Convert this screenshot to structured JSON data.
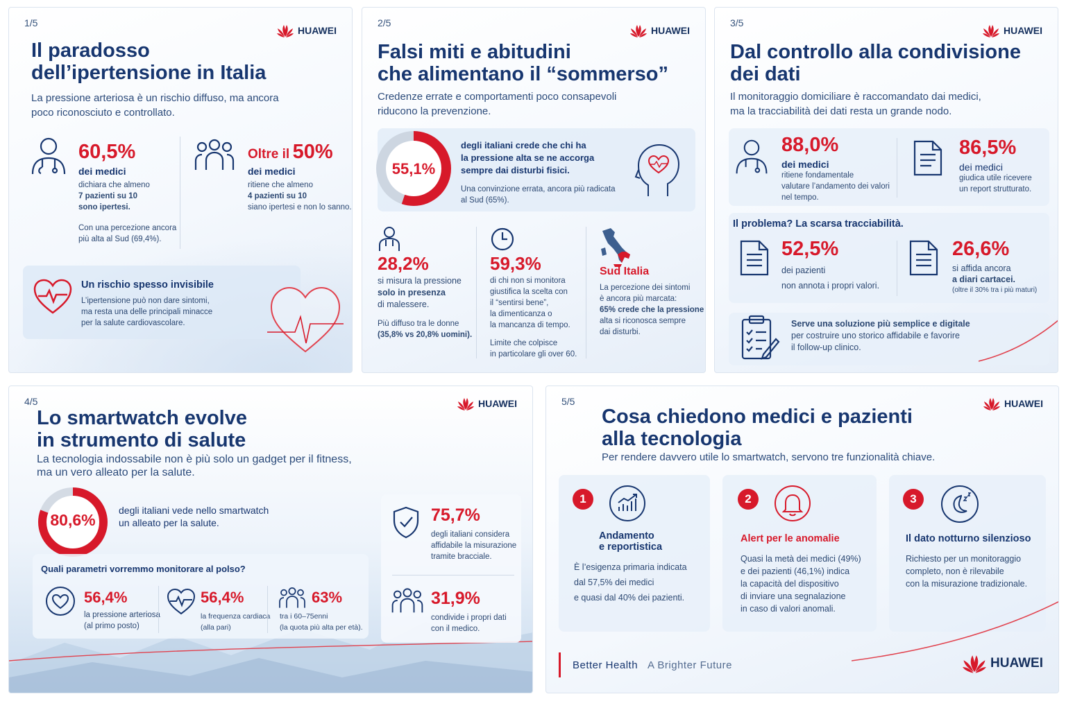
{
  "brand": "HUAWEI",
  "p1": {
    "num": "1/5",
    "title1": "Il paradosso",
    "title2": "dell’ipertensione in Italia",
    "sub1": "La pressione arteriosa è un rischio diffuso, ma ancora",
    "sub2": "poco riconosciuto e controllato.",
    "s1_value": "60,5%",
    "s1_label": "dei medici",
    "s1_t1": "dichiara che almeno",
    "s1_t2": "7 pazienti su 10",
    "s1_t3": "sono ipertesi.",
    "s1_n1": "Con una percezione ancora",
    "s1_n2": "più alta al Sud (69,4%).",
    "s2_prefix": "Oltre il",
    "s2_value": "50%",
    "s2_label": "dei medici",
    "s2_t1": "ritiene che almeno",
    "s2_t2": "4 pazienti su 10",
    "s2_t3": "siano ipertesi e non lo sanno.",
    "risk_title": "Un rischio spesso invisibile",
    "risk_t1": "L’ipertensione può non dare sintomi,",
    "risk_t2": "ma resta una delle principali minacce",
    "risk_t3": "per la salute cardiovascolare."
  },
  "p2": {
    "num": "2/5",
    "title1": "Falsi miti e abitudini",
    "title2": "che alimentano il “sommerso”",
    "sub1": "Credenze errate e comportamenti poco consapevoli",
    "sub2": "riducono la prevenzione.",
    "ring_value": "55,1%",
    "ring_fraction": 0.551,
    "ring_t1": "degli italiani crede che chi ha",
    "ring_t2": "la pressione alta se ne accorga",
    "ring_t3": "sempre dai disturbi fisici.",
    "ring_n1": "Una convinzione errata, ancora più radicata",
    "ring_n2": "al Sud (65%).",
    "c1_value": "28,2%",
    "c1_t1": "si misura la pressione",
    "c1_t2": "solo in presenza",
    "c1_t3": "di malessere.",
    "c1_n1": "Più diffuso tra le donne",
    "c1_n2": "(35,8% vs 20,8% uomini).",
    "c2_value": "59,3%",
    "c2_t1": "di chi non si monitora",
    "c2_t2": "giustifica la scelta con",
    "c2_t3": "il “sentirsi bene”,",
    "c2_t4": "la dimenticanza o",
    "c2_t5": "la mancanza di tempo.",
    "c2_n1": "Limite che colpisce",
    "c2_n2": "in particolare gli over 60.",
    "c3_title": "Sud Italia",
    "c3_t1": "La percezione dei sintomi",
    "c3_t2": "è ancora più marcata:",
    "c3_t3": "65% crede che la pressione",
    "c3_t4": "alta si riconosca sempre",
    "c3_t5": "dai disturbi."
  },
  "p3": {
    "num": "3/5",
    "title1": "Dal controllo alla condivisione",
    "title2": "dei dati",
    "sub1": "Il monitoraggio domiciliare è raccomandato dai medici,",
    "sub2": "ma la tracciabilità dei dati resta un grande nodo.",
    "s1_value": "88,0%",
    "s1_label": "dei medici",
    "s1_t1": "ritiene fondamentale",
    "s1_t2": "valutare l’andamento dei valori",
    "s1_t3": "nel tempo.",
    "s2_value": "86,5%",
    "s2_label": "dei medici",
    "s2_t1": "giudica utile ricevere",
    "s2_t2": "un report strutturato.",
    "problem": "Il problema? La scarsa tracciabilità.",
    "s3_value": "52,5%",
    "s3_t1": "dei pazienti",
    "s3_t2": "non annota i propri valori.",
    "s4_value": "26,6%",
    "s4_t1": "si affida ancora",
    "s4_t2": "a diari cartacei.",
    "s4_t3": "(oltre il 30% tra i più maturi)",
    "sol_t1": "Serve una soluzione più semplice e digitale",
    "sol_t2": "per costruire uno storico affidabile e favorire",
    "sol_t3": "il follow-up clinico."
  },
  "p4": {
    "num": "4/5",
    "title1": "Lo smartwatch evolve",
    "title2": "in strumento di salute",
    "sub1": "La tecnologia indossabile non è più solo un gadget per il fitness,",
    "sub2": "ma un vero alleato per la salute.",
    "ring_value": "80,6%",
    "ring_fraction": 0.806,
    "ring_t1": "degli italiani vede nello smartwatch",
    "ring_t2": "un alleato per la salute.",
    "q_title": "Quali parametri vorremmo monitorare al polso?",
    "m1_value": "56,4%",
    "m1_t1": "la pressione arteriosa",
    "m1_t2": "(al primo posto)",
    "m2_value": "56,4%",
    "m2_t1": "la frequenza cardiaca",
    "m2_t2": "(alla pari)",
    "m3_value": "63%",
    "m3_t1": "tra i 60–75enni",
    "m3_t2": "(la quota più alta per età).",
    "r1_value": "75,7%",
    "r1_t1": "degli italiani considera",
    "r1_t2": "affidabile la misurazione",
    "r1_t3": "tramite bracciale.",
    "r2_value": "31,9%",
    "r2_t1": "condivide i propri dati",
    "r2_t2": "con il medico."
  },
  "p5": {
    "num": "5/5",
    "title1": "Cosa chiedono medici e pazienti",
    "title2": "alla tecnologia",
    "sub": "Per rendere davvero utile lo smartwatch, servono tre funzionalità chiave.",
    "f1_num": "1",
    "f1_title1": "Andamento",
    "f1_title2": "e reportistica",
    "f1_t1": "È l’esigenza primaria indicata",
    "f1_t2": "dal 57,5% dei medici",
    "f1_t3": "e quasi dal 40% dei pazienti.",
    "f2_num": "2",
    "f2_title": "Alert per le anomalie",
    "f2_t1": "Quasi la metà dei medici (49%)",
    "f2_t2": "e dei pazienti (46,1%) indica",
    "f2_t3": "la capacità del dispositivo",
    "f2_t4": "di inviare una segnalazione",
    "f2_t5": "in caso di valori anomali.",
    "f3_num": "3",
    "f3_title": "Il dato notturno silenzioso",
    "f3_t1": "Richiesto per un monitoraggio",
    "f3_t2": "completo, non è rilevabile",
    "f3_t3": "con la misurazione tradizionale.",
    "tag1": "Better Health",
    "tag2": "A Brighter Future"
  },
  "colors": {
    "accent": "#d7192a",
    "navy": "#17366f"
  }
}
